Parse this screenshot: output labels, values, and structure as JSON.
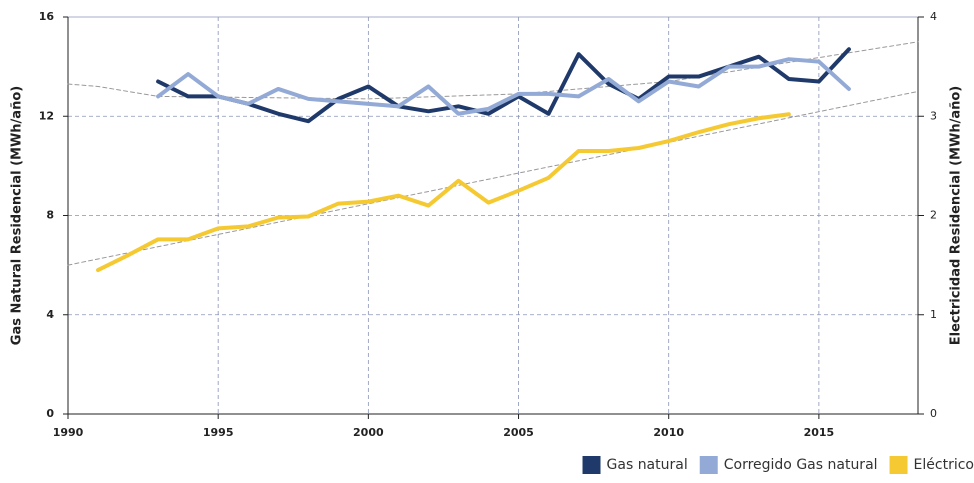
{
  "chart_data": {
    "type": "line",
    "xlabel": null,
    "ylabel": "Gas Natural Residencial (MWh/año)",
    "y2label": "Electricidad Residencial (MWh/año)",
    "xlim": [
      1990,
      2018.3
    ],
    "xticks": [
      1990,
      1995,
      2000,
      2005,
      2010,
      2015
    ],
    "ylim": [
      0,
      16
    ],
    "yticks": [
      0,
      4,
      8,
      12,
      16
    ],
    "y2lim": [
      0,
      4
    ],
    "y2ticks": [
      0,
      1,
      2,
      3,
      4
    ],
    "grid": true,
    "legend": "bottom-right",
    "series": [
      {
        "name": "Gas natural",
        "color": "#1f3a6a",
        "axis": "y",
        "x": [
          1993,
          1994,
          1995,
          1996,
          1997,
          1998,
          1999,
          2000,
          2001,
          2002,
          2003,
          2004,
          2005,
          2006,
          2007,
          2008,
          2009,
          2010,
          2011,
          2012,
          2013,
          2014,
          2015,
          2016
        ],
        "values": [
          13.4,
          12.8,
          12.8,
          12.5,
          12.1,
          11.8,
          12.7,
          13.2,
          12.4,
          12.2,
          12.4,
          12.1,
          12.8,
          12.1,
          14.5,
          13.3,
          12.7,
          13.6,
          13.6,
          14.0,
          14.4,
          13.5,
          13.4,
          14.7
        ]
      },
      {
        "name": "Corregido Gas natural",
        "color": "#93aad6",
        "axis": "y",
        "x": [
          1993,
          1994,
          1995,
          1996,
          1997,
          1998,
          1999,
          2000,
          2001,
          2002,
          2003,
          2004,
          2005,
          2006,
          2007,
          2008,
          2009,
          2010,
          2011,
          2012,
          2013,
          2014,
          2015,
          2016
        ],
        "values": [
          12.8,
          13.7,
          12.8,
          12.5,
          13.1,
          12.7,
          12.6,
          12.5,
          12.4,
          13.2,
          12.1,
          12.3,
          12.9,
          12.9,
          12.8,
          13.5,
          12.6,
          13.4,
          13.2,
          14.0,
          14.0,
          14.3,
          14.2,
          13.1
        ]
      },
      {
        "name": "Eléctrico",
        "color": "#f5c932",
        "axis": "y2",
        "x": [
          1991,
          1992,
          1993,
          1994,
          1995,
          1996,
          1997,
          1998,
          1999,
          2000,
          2001,
          2002,
          2003,
          2004,
          2005,
          2006,
          2007,
          2008,
          2009,
          2010,
          2011,
          2012,
          2013,
          2014
        ],
        "values": [
          1.45,
          1.6,
          1.76,
          1.76,
          1.87,
          1.89,
          1.98,
          1.99,
          2.12,
          2.14,
          2.2,
          2.1,
          2.35,
          2.13,
          2.25,
          2.38,
          2.65,
          2.65,
          2.68,
          2.75,
          2.84,
          2.92,
          2.98,
          3.02
        ]
      }
    ],
    "trendlines": [
      {
        "axis": "y",
        "color": "#999999",
        "x": [
          1990,
          1991,
          1993,
          2000,
          2005,
          2010,
          2018.3
        ],
        "values": [
          13.3,
          13.2,
          12.8,
          12.7,
          12.9,
          13.4,
          15.0
        ]
      },
      {
        "axis": "y2",
        "color": "#999999",
        "x": [
          1990,
          2018.3
        ],
        "values": [
          1.5,
          3.25
        ]
      }
    ]
  }
}
